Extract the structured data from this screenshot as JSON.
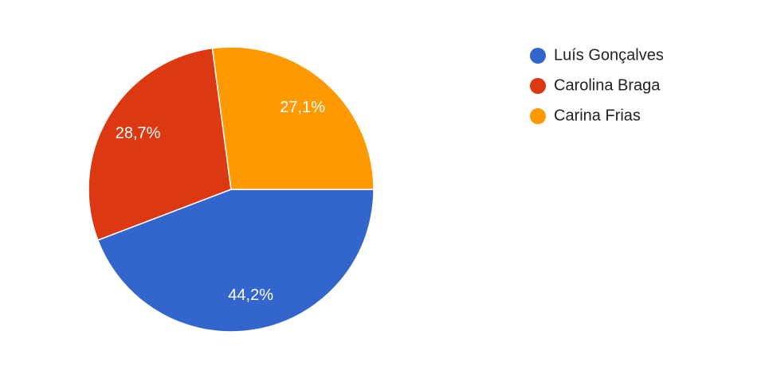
{
  "chart_data": {
    "type": "pie",
    "categories": [
      "Luís Gonçalves",
      "Carolina Braga",
      "Carina Frias"
    ],
    "values": [
      44.2,
      28.7,
      27.1
    ],
    "value_labels": [
      "44,2%",
      "28,7%",
      "27,1%"
    ],
    "colors": [
      "#3366cc",
      "#dc3912",
      "#ff9900"
    ],
    "legend": "right"
  }
}
